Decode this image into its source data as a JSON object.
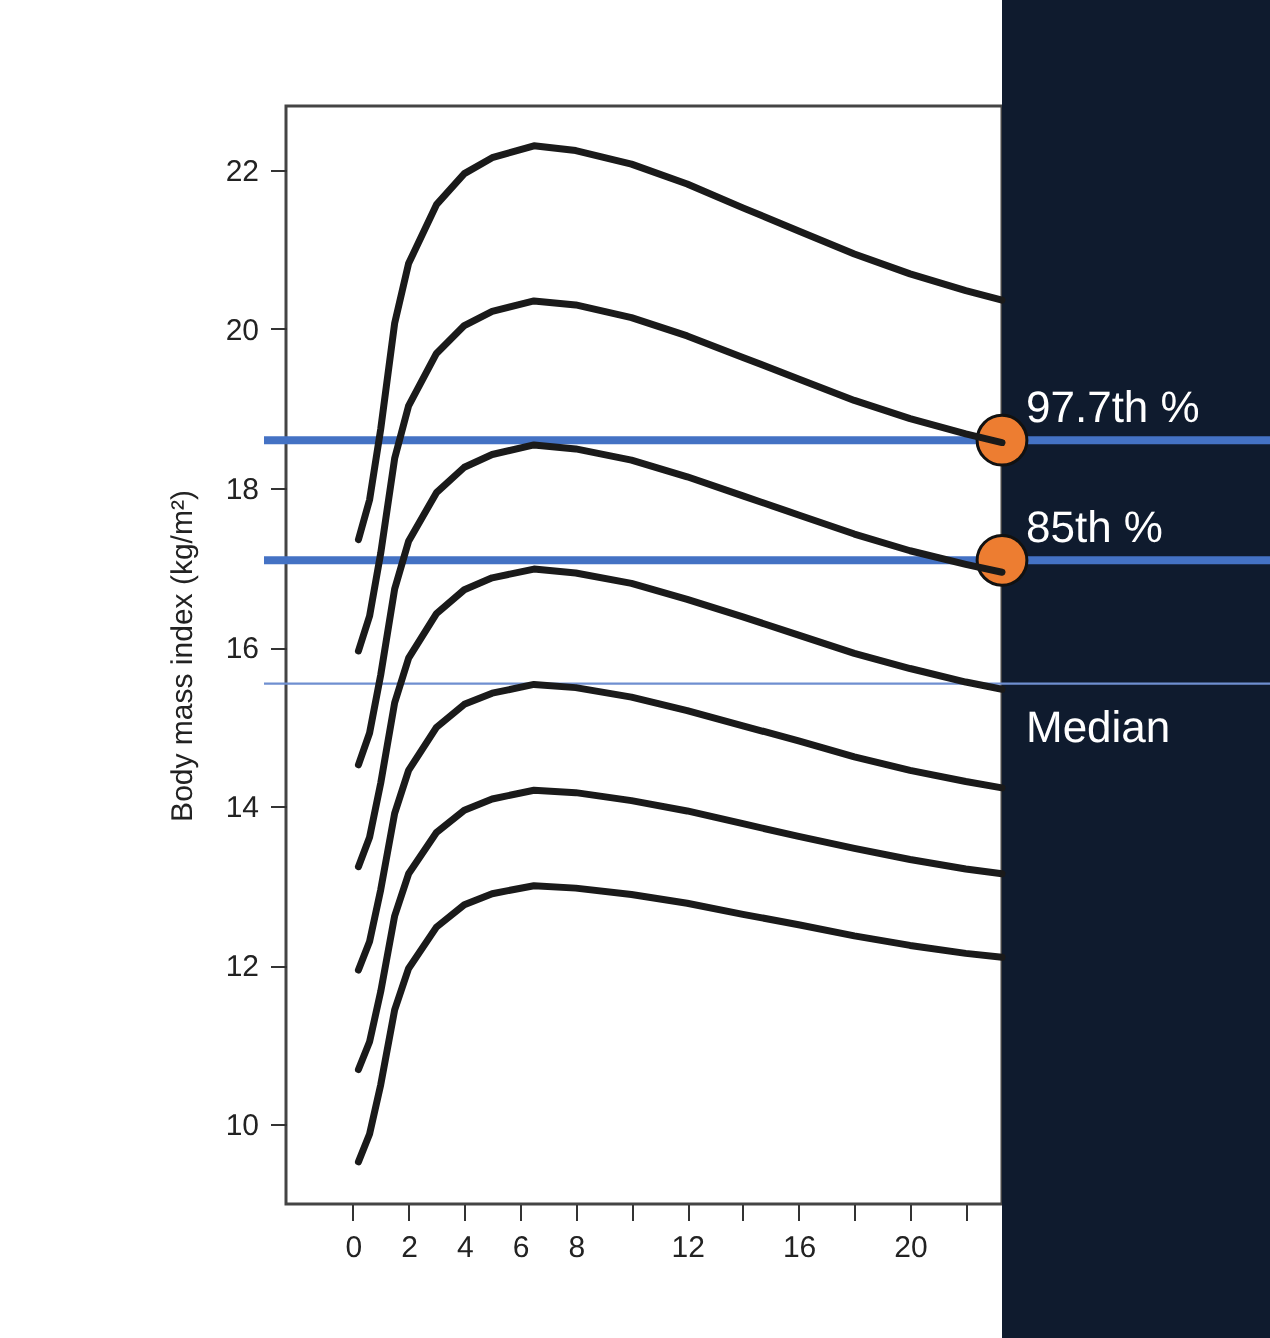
{
  "chart_data": {
    "type": "line",
    "ylabel": "Body mass index (kg/m²)",
    "x": [
      0.2,
      0.6,
      1,
      1.5,
      2,
      3,
      4,
      5,
      6.5,
      8,
      10,
      12,
      14,
      16,
      18,
      20,
      22,
      23.3
    ],
    "series": [
      {
        "color": "#1a1a1a",
        "values": [
          17.35,
          17.85,
          18.74,
          20.07,
          20.82,
          21.56,
          21.95,
          22.15,
          22.3,
          22.24,
          22.07,
          21.82,
          21.52,
          21.23,
          20.94,
          20.69,
          20.48,
          20.36
        ]
      },
      {
        "color": "#1a1a1a",
        "values": [
          15.95,
          16.39,
          17.18,
          18.37,
          19.03,
          19.69,
          20.04,
          20.22,
          20.35,
          20.3,
          20.14,
          19.91,
          19.64,
          19.37,
          19.1,
          18.87,
          18.68,
          18.57
        ]
      },
      {
        "color": "#1a1a1a",
        "values": [
          14.52,
          14.92,
          15.65,
          16.73,
          17.33,
          17.94,
          18.26,
          18.42,
          18.54,
          18.49,
          18.35,
          18.14,
          17.9,
          17.66,
          17.42,
          17.21,
          17.04,
          16.94
        ]
      },
      {
        "color": "#1a1a1a",
        "values": [
          13.24,
          13.61,
          14.29,
          15.3,
          15.86,
          16.42,
          16.72,
          16.87,
          16.98,
          16.93,
          16.8,
          16.6,
          16.38,
          16.15,
          15.92,
          15.73,
          15.56,
          15.47
        ]
      },
      {
        "color": "#1a1a1a",
        "values": [
          11.94,
          12.3,
          12.95,
          13.91,
          14.45,
          14.99,
          15.28,
          15.42,
          15.53,
          15.49,
          15.37,
          15.2,
          15.01,
          14.82,
          14.62,
          14.45,
          14.31,
          14.23
        ]
      },
      {
        "color": "#1a1a1a",
        "values": [
          10.69,
          11.04,
          11.67,
          12.62,
          13.15,
          13.67,
          13.95,
          14.09,
          14.2,
          14.17,
          14.07,
          13.94,
          13.78,
          13.62,
          13.47,
          13.33,
          13.21,
          13.15
        ]
      },
      {
        "color": "#1a1a1a",
        "values": [
          9.53,
          9.88,
          10.5,
          11.44,
          11.96,
          12.48,
          12.76,
          12.9,
          13.0,
          12.97,
          12.89,
          12.78,
          12.64,
          12.51,
          12.37,
          12.25,
          12.15,
          12.1
        ]
      },
      {
        "type": "scatter",
        "marker": "circle",
        "color": "#ed7d31",
        "x": [
          23.3,
          23.3
        ],
        "values": [
          18.6,
          17.09
        ]
      }
    ],
    "ref_lines": [
      {
        "axis": "y",
        "value": 18.6,
        "label": "97.7th %",
        "color": "#4472c4"
      },
      {
        "axis": "y",
        "value": 17.09,
        "label": "85th %",
        "color": "#4472c4"
      },
      {
        "axis": "y",
        "value": 15.54,
        "label": "Median",
        "color": "#6f8fd0"
      }
    ],
    "xlim": [
      -2.4,
      23.3
    ],
    "xticks": [
      0,
      2,
      4,
      6,
      8,
      {
        "value": 10,
        "label": null
      },
      12,
      {
        "value": 14,
        "label": null
      },
      16,
      {
        "value": 18,
        "label": null
      },
      20,
      {
        "value": 22,
        "label": null
      }
    ],
    "ylim": [
      9.0,
      22.8
    ],
    "yticks": [
      10,
      12,
      14,
      16,
      18,
      20,
      22
    ]
  }
}
